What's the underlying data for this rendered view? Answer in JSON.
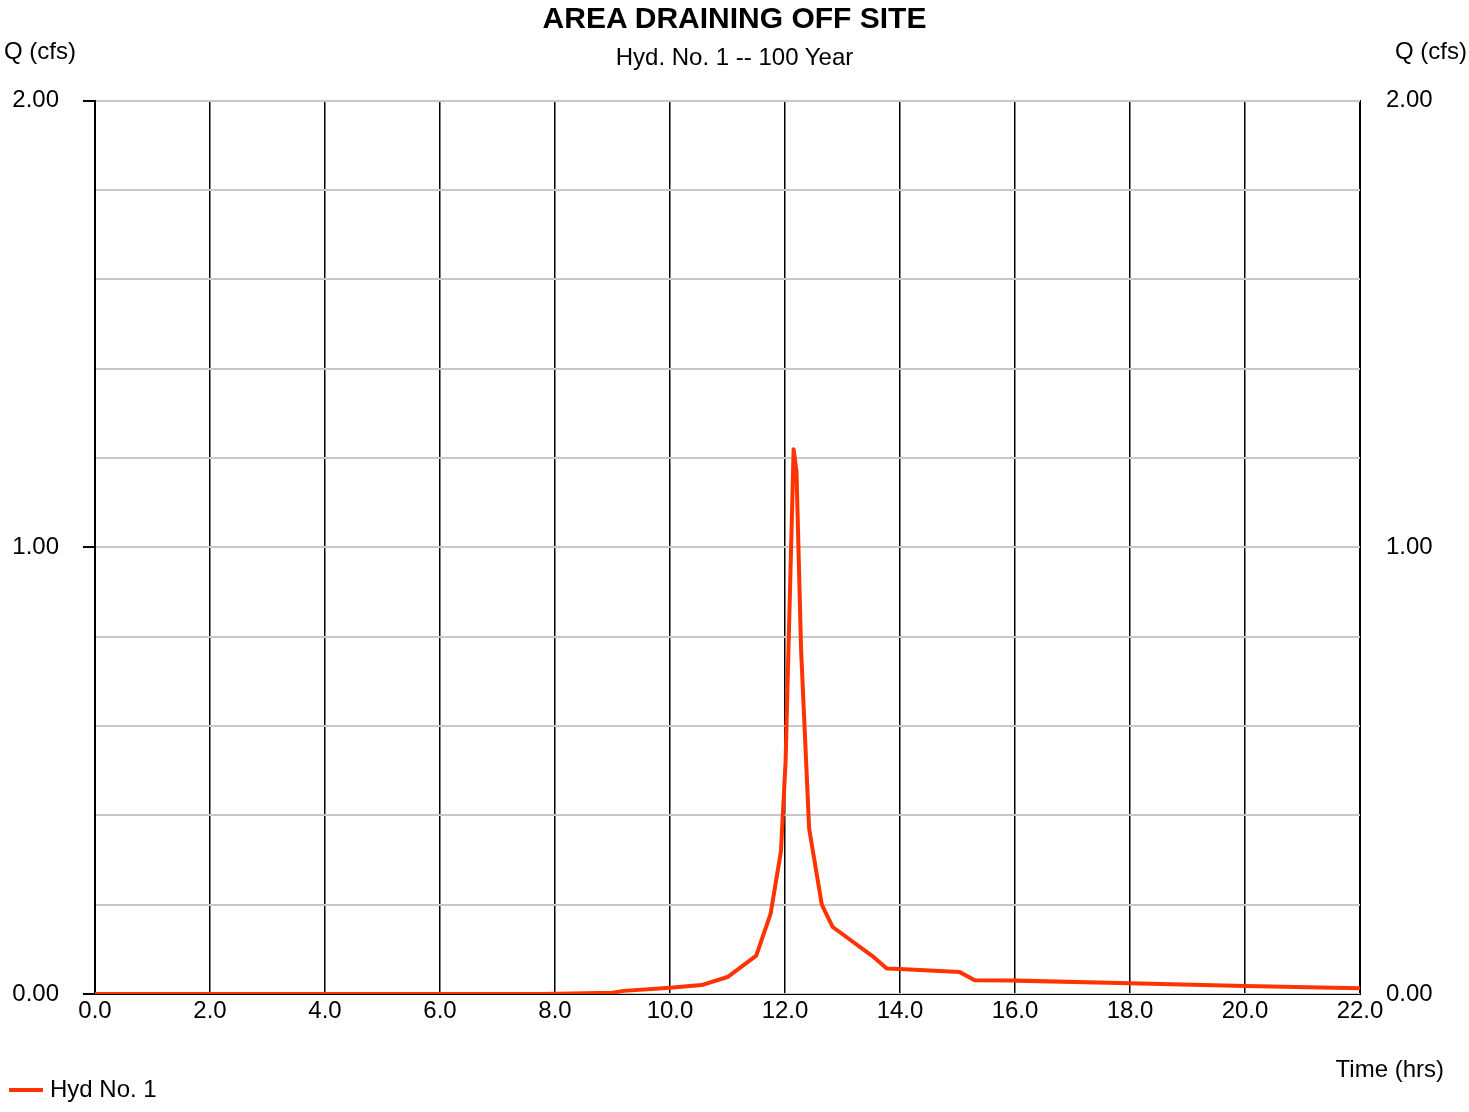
{
  "chart_data": {
    "type": "line",
    "title": "AREA DRAINING OFF SITE",
    "subtitle": "Hyd. No. 1 -- 100 Year",
    "xlabel": "Time (hrs)",
    "ylabel": "Q (cfs)",
    "y2label": "Q (cfs)",
    "x": [
      0,
      2,
      4,
      6,
      7.8,
      9.0,
      9.2,
      10.0,
      10.55,
      11.0,
      11.5,
      11.75,
      11.93,
      12.01,
      12.06,
      12.15,
      12.2,
      12.28,
      12.42,
      12.64,
      12.83,
      13.52,
      13.77,
      14.0,
      15.04,
      15.3,
      16.0,
      18.0,
      20.0,
      22.0
    ],
    "series": [
      {
        "name": "Hyd No. 1",
        "color": "#ff3300",
        "values": [
          0,
          0,
          0,
          0,
          0,
          0.003,
          0.007,
          0.014,
          0.02,
          0.038,
          0.086,
          0.18,
          0.32,
          0.52,
          0.77,
          1.22,
          1.17,
          0.77,
          0.37,
          0.2,
          0.15,
          0.085,
          0.057,
          0.056,
          0.049,
          0.031,
          0.03,
          0.024,
          0.018,
          0.013
        ]
      }
    ],
    "xlim": [
      0,
      22
    ],
    "xticks": [
      {
        "value": 0,
        "label": "0.0"
      },
      {
        "value": 2,
        "label": "2.0"
      },
      {
        "value": 4,
        "label": "4.0"
      },
      {
        "value": 6,
        "label": "6.0"
      },
      {
        "value": 8,
        "label": "8.0"
      },
      {
        "value": 10,
        "label": "10.0"
      },
      {
        "value": 12,
        "label": "12.0"
      },
      {
        "value": 14,
        "label": "14.0"
      },
      {
        "value": 16,
        "label": "16.0"
      },
      {
        "value": 18,
        "label": "18.0"
      },
      {
        "value": 20,
        "label": "20.0"
      },
      {
        "value": 22,
        "label": "22.0"
      }
    ],
    "ylim": [
      0,
      2
    ],
    "yticks": [
      {
        "value": 0,
        "label": "0.00"
      },
      {
        "value": 0.2,
        "label": null
      },
      {
        "value": 0.4,
        "label": null
      },
      {
        "value": 0.6,
        "label": null
      },
      {
        "value": 0.8,
        "label": null
      },
      {
        "value": 1,
        "label": "1.00"
      },
      {
        "value": 1.2,
        "label": null
      },
      {
        "value": 1.4,
        "label": null
      },
      {
        "value": 1.6,
        "label": null
      },
      {
        "value": 1.8,
        "label": null
      },
      {
        "value": 2,
        "label": "2.00"
      }
    ],
    "y2lim": [
      0,
      2
    ],
    "y2ticks": [
      {
        "value": 0,
        "label": "0.00"
      },
      {
        "value": 1,
        "label": "1.00"
      },
      {
        "value": 2,
        "label": "2.00"
      }
    ],
    "grid": true,
    "legend": "bottom left"
  }
}
